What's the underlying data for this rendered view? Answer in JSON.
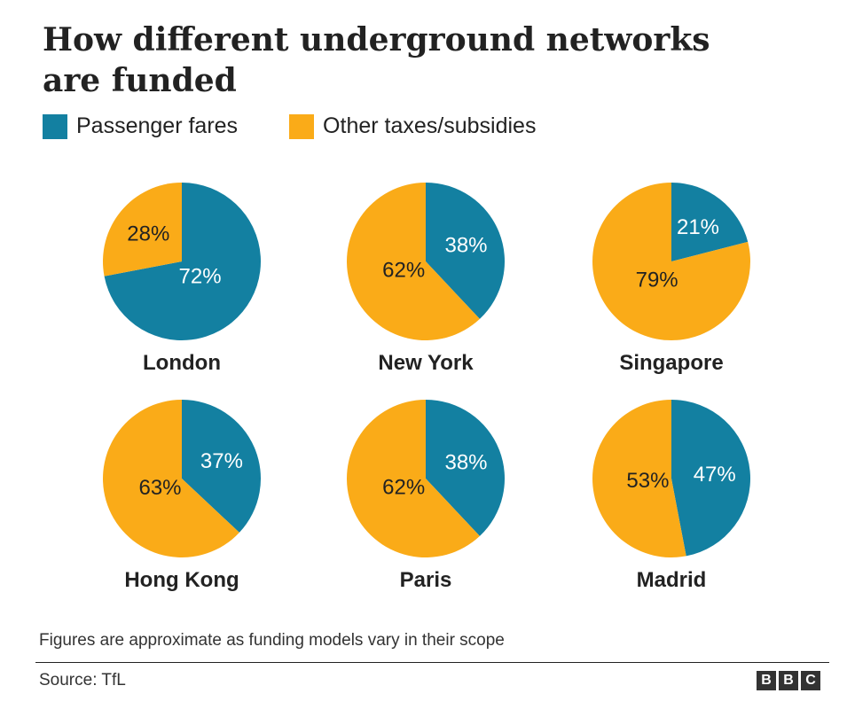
{
  "title": "How different underground networks are funded",
  "legend": [
    {
      "label": "Passenger fares",
      "color": "#1380A1"
    },
    {
      "label": "Other taxes/subsidies",
      "color": "#FAAB18"
    }
  ],
  "chart_data": [
    {
      "type": "pie",
      "title": "London",
      "categories": [
        "Passenger fares",
        "Other taxes/subsidies"
      ],
      "values": [
        72,
        28
      ],
      "labels": [
        "72%",
        "28%"
      ]
    },
    {
      "type": "pie",
      "title": "New York",
      "categories": [
        "Passenger fares",
        "Other taxes/subsidies"
      ],
      "values": [
        38,
        62
      ],
      "labels": [
        "38%",
        "62%"
      ]
    },
    {
      "type": "pie",
      "title": "Singapore",
      "categories": [
        "Passenger fares",
        "Other taxes/subsidies"
      ],
      "values": [
        21,
        79
      ],
      "labels": [
        "21%",
        "79%"
      ]
    },
    {
      "type": "pie",
      "title": "Hong Kong",
      "categories": [
        "Passenger fares",
        "Other taxes/subsidies"
      ],
      "values": [
        37,
        63
      ],
      "labels": [
        "37%",
        "63%"
      ]
    },
    {
      "type": "pie",
      "title": "Paris",
      "categories": [
        "Passenger fares",
        "Other taxes/subsidies"
      ],
      "values": [
        38,
        62
      ],
      "labels": [
        "38%",
        "62%"
      ]
    },
    {
      "type": "pie",
      "title": "Madrid",
      "categories": [
        "Passenger fares",
        "Other taxes/subsidies"
      ],
      "values": [
        47,
        53
      ],
      "labels": [
        "47%",
        "53%"
      ]
    }
  ],
  "footnote": "Figures are approximate as funding models vary in their scope",
  "source": "Source: TfL",
  "logo": {
    "letters": [
      "B",
      "B",
      "C"
    ]
  }
}
